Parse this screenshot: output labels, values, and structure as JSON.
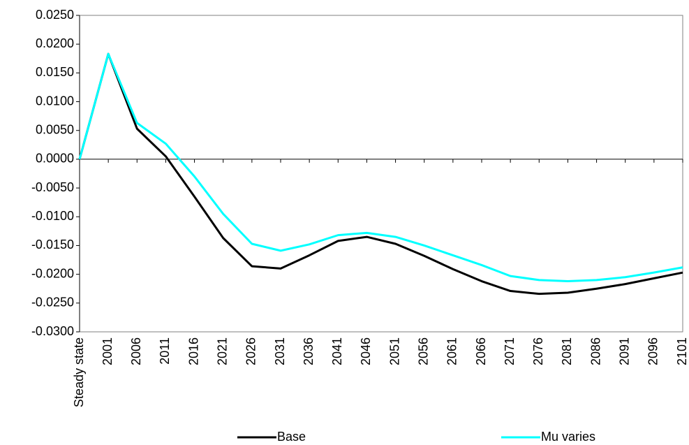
{
  "chart_data": {
    "type": "line",
    "categories": [
      "Steady state",
      "2001",
      "2006",
      "2011",
      "2016",
      "2021",
      "2026",
      "2031",
      "2036",
      "2041",
      "2046",
      "2051",
      "2056",
      "2061",
      "2066",
      "2071",
      "2076",
      "2081",
      "2086",
      "2091",
      "2096",
      "2101"
    ],
    "series": [
      {
        "name": "Base",
        "color": "#000000",
        "values": [
          0,
          0.0183,
          0.0053,
          0.0005,
          -0.0065,
          -0.0137,
          -0.0186,
          -0.019,
          -0.0167,
          -0.0142,
          -0.0135,
          -0.0147,
          -0.0168,
          -0.0191,
          -0.0212,
          -0.0229,
          -0.0234,
          -0.0232,
          -0.0225,
          -0.0217,
          -0.0207,
          -0.0197
        ]
      },
      {
        "name": "Mu varies",
        "color": "#00ffff",
        "values": [
          0,
          0.0183,
          0.0063,
          0.0027,
          -0.003,
          -0.0095,
          -0.0147,
          -0.0159,
          -0.0148,
          -0.0132,
          -0.0128,
          -0.0135,
          -0.015,
          -0.0167,
          -0.0184,
          -0.0203,
          -0.021,
          -0.0212,
          -0.021,
          -0.0205,
          -0.0197,
          -0.0188
        ]
      }
    ],
    "ylim": [
      -0.03,
      0.025
    ],
    "yticks": [
      {
        "value": 0.025,
        "label": "0.0250"
      },
      {
        "value": 0.02,
        "label": "0.0200"
      },
      {
        "value": 0.015,
        "label": "0.0150"
      },
      {
        "value": 0.01,
        "label": "0.0100"
      },
      {
        "value": 0.005,
        "label": "0.0050"
      },
      {
        "value": 0,
        "label": "0.0000"
      },
      {
        "value": -0.005,
        "label": "-0.0050"
      },
      {
        "value": -0.01,
        "label": "-0.0100"
      },
      {
        "value": -0.015,
        "label": "-0.0150"
      },
      {
        "value": -0.02,
        "label": "-0.0200"
      },
      {
        "value": -0.025,
        "label": "-0.0250"
      },
      {
        "value": -0.03,
        "label": "-0.0300"
      }
    ],
    "grid": false,
    "legend": "bottom"
  }
}
